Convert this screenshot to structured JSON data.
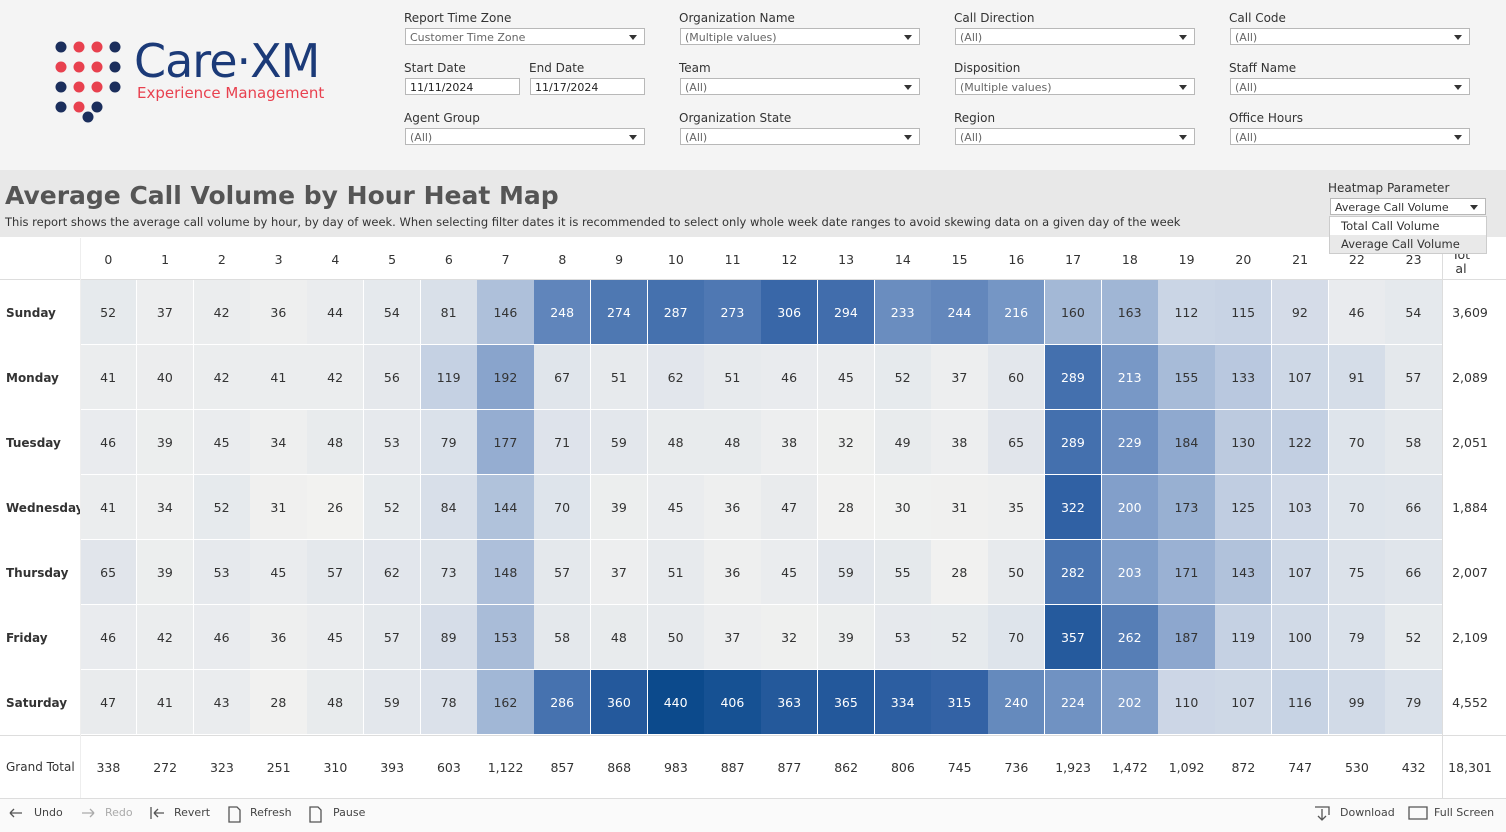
{
  "logo": {
    "brand": "Care·XM",
    "tagline": "Experience Management"
  },
  "filters": [
    {
      "label": "Report Time Zone",
      "value": "Customer Time Zone",
      "col": 0,
      "row": 0
    },
    {
      "label": "Agent Group",
      "value": "(All)",
      "col": 0,
      "row": 2
    },
    {
      "label": "Organization Name",
      "value": "(Multiple values)",
      "col": 1,
      "row": 0
    },
    {
      "label": "Team",
      "value": "(All)",
      "col": 1,
      "row": 1
    },
    {
      "label": "Organization State",
      "value": "(All)",
      "col": 1,
      "row": 2
    },
    {
      "label": "Call Direction",
      "value": "(All)",
      "col": 2,
      "row": 0
    },
    {
      "label": "Disposition",
      "value": "(Multiple values)",
      "col": 2,
      "row": 1
    },
    {
      "label": "Region",
      "value": "(All)",
      "col": 2,
      "row": 2
    },
    {
      "label": "Call Code",
      "value": "(All)",
      "col": 3,
      "row": 0
    },
    {
      "label": "Staff Name",
      "value": "(All)",
      "col": 3,
      "row": 1
    },
    {
      "label": "Office Hours",
      "value": "(All)",
      "col": 3,
      "row": 2
    }
  ],
  "dates": {
    "start": {
      "label": "Start Date",
      "value": "11/11/2024"
    },
    "end": {
      "label": "End Date",
      "value": "11/17/2024"
    }
  },
  "report": {
    "title": "Average Call Volume by Hour Heat Map",
    "description": "This report shows the average call volume by hour, by day of week. When selecting filter dates it is recommended to select only whole week date ranges to avoid skewing data on a given day of the week"
  },
  "parameter": {
    "label": "Heatmap Parameter",
    "value": "Average Call Volume",
    "options": [
      "Total Call Volume",
      "Average Call Volume"
    ]
  },
  "table": {
    "columns": [
      0,
      1,
      2,
      3,
      4,
      5,
      6,
      7,
      8,
      9,
      10,
      11,
      12,
      13,
      14,
      15,
      16,
      17,
      18,
      19,
      20,
      21,
      22,
      23
    ],
    "total_header": "Total",
    "rows": [
      {
        "label": "Sunday",
        "values": [
          52,
          37,
          42,
          36,
          44,
          54,
          81,
          146,
          248,
          274,
          287,
          273,
          306,
          294,
          233,
          244,
          216,
          160,
          163,
          112,
          115,
          92,
          46,
          54
        ],
        "total": "3,609"
      },
      {
        "label": "Monday",
        "values": [
          41,
          40,
          42,
          41,
          42,
          56,
          119,
          192,
          67,
          51,
          62,
          51,
          46,
          45,
          52,
          37,
          60,
          289,
          213,
          155,
          133,
          107,
          91,
          57
        ],
        "total": "2,089"
      },
      {
        "label": "Tuesday",
        "values": [
          46,
          39,
          45,
          34,
          48,
          53,
          79,
          177,
          71,
          59,
          48,
          48,
          38,
          32,
          49,
          38,
          65,
          289,
          229,
          184,
          130,
          122,
          70,
          58
        ],
        "total": "2,051"
      },
      {
        "label": "Wednesday",
        "values": [
          41,
          34,
          52,
          31,
          26,
          52,
          84,
          144,
          70,
          39,
          45,
          36,
          47,
          28,
          30,
          31,
          35,
          322,
          200,
          173,
          125,
          103,
          70,
          66
        ],
        "total": "1,884"
      },
      {
        "label": "Thursday",
        "values": [
          65,
          39,
          53,
          45,
          57,
          62,
          73,
          148,
          57,
          37,
          51,
          36,
          45,
          59,
          55,
          28,
          50,
          282,
          203,
          171,
          143,
          107,
          75,
          66
        ],
        "total": "2,007"
      },
      {
        "label": "Friday",
        "values": [
          46,
          42,
          46,
          36,
          45,
          57,
          89,
          153,
          58,
          48,
          50,
          37,
          32,
          39,
          53,
          52,
          70,
          357,
          262,
          187,
          119,
          100,
          79,
          52
        ],
        "total": "2,109"
      },
      {
        "label": "Saturday",
        "values": [
          47,
          41,
          43,
          28,
          48,
          59,
          78,
          162,
          286,
          360,
          440,
          406,
          363,
          365,
          334,
          315,
          240,
          224,
          202,
          110,
          107,
          116,
          99,
          79
        ],
        "total": "4,552"
      }
    ],
    "grand_total": {
      "label": "Grand Total",
      "values": [
        "338",
        "272",
        "323",
        "251",
        "310",
        "393",
        "603",
        "1,122",
        "857",
        "868",
        "983",
        "887",
        "877",
        "862",
        "806",
        "745",
        "736",
        "1,923",
        "1,472",
        "1,092",
        "872",
        "747",
        "530",
        "432"
      ],
      "total": "18,301"
    }
  },
  "toolbar": {
    "left": [
      "Undo",
      "Redo",
      "Revert",
      "Refresh",
      "Pause"
    ],
    "right": [
      "Download",
      "Full Screen"
    ]
  }
}
